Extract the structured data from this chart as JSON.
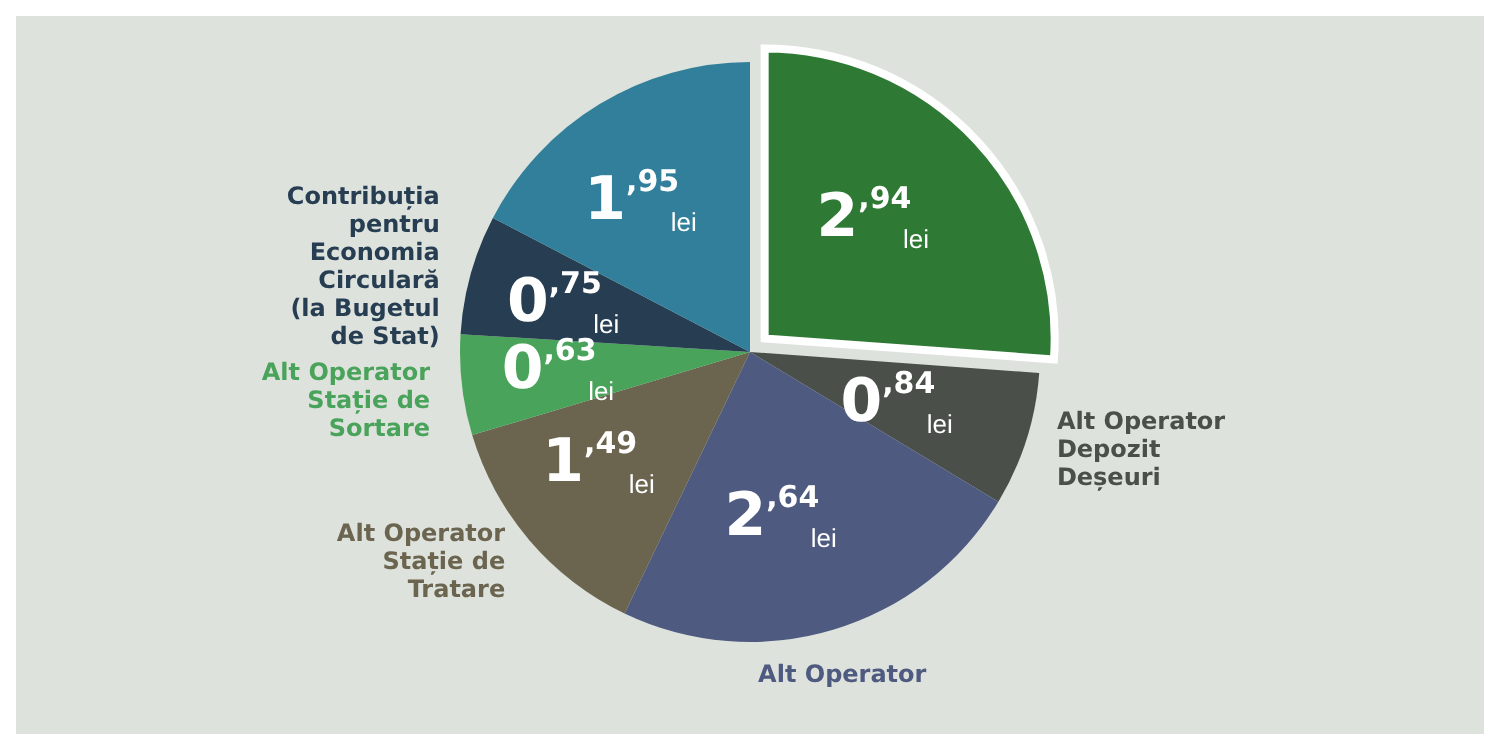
{
  "chart_data": {
    "type": "pie",
    "categories": [
      null,
      "Alt Operator Depozit Deșeuri",
      "Alt Operator",
      "Alt Operator Stație de Tratare",
      "Alt Operator Stație de Sortare",
      "Contribuția pentru Economia Circulară (la Bugetul de Stat)",
      null
    ],
    "values": [
      2.94,
      0.84,
      2.64,
      1.49,
      0.63,
      0.75,
      1.95
    ],
    "colors": [
      "#2e7a35",
      "#4a4f4a",
      "#4e5a80",
      "#6b6550",
      "#4aa35a",
      "#263d52",
      "#317f9a"
    ],
    "value_labels": [
      "2,94 lei",
      "0,84 lei",
      "2,64 lei",
      "1,49 lei",
      "0,63 lei",
      "0,75 lei",
      "1,95 lei"
    ]
  }
}
